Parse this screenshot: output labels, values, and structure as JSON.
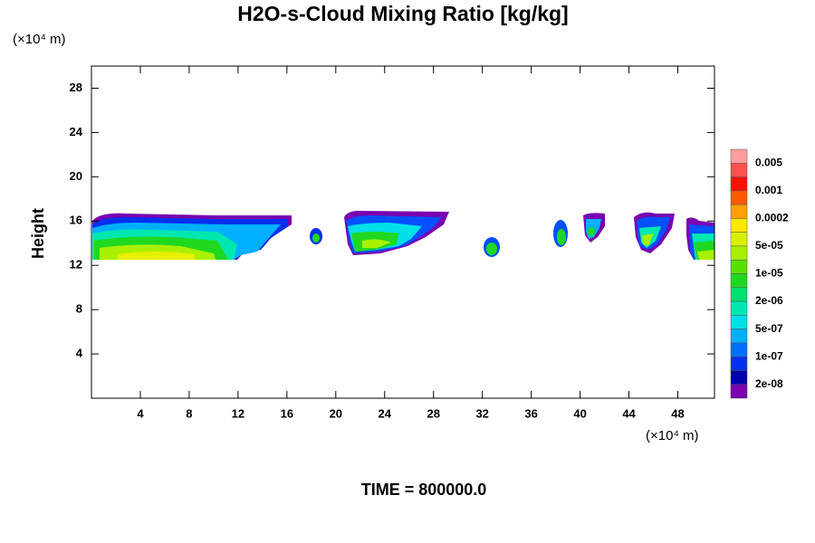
{
  "chart_data": {
    "type": "contour",
    "title": "H2O-s-Cloud Mixing Ratio [kg/kg]",
    "y_unit_label": "(×10⁴ m)",
    "x_unit_label": "(×10⁴ m)",
    "ylabel": "Height",
    "caption": "TIME = 800000.0",
    "xlim": [
      0,
      51
    ],
    "ylim": [
      0,
      30
    ],
    "xticks": [
      4,
      8,
      12,
      16,
      20,
      24,
      28,
      32,
      36,
      40,
      44,
      48
    ],
    "yticks": [
      4,
      8,
      12,
      16,
      20,
      24,
      28
    ],
    "colorbar": {
      "colors": [
        "#ff9c9c",
        "#ff5050",
        "#ff1000",
        "#ff5a00",
        "#ffa000",
        "#ffe800",
        "#d8f000",
        "#a8f000",
        "#58e000",
        "#20d820",
        "#00e070",
        "#00e8b0",
        "#00e0e8",
        "#00b0ff",
        "#0070ff",
        "#0030f0",
        "#0000b0",
        "#7a00b0"
      ],
      "levels": [
        {
          "value": 0.005,
          "label": "0.005"
        },
        {
          "value": 0.001,
          "label": "0.001"
        },
        {
          "value": 0.0002,
          "label": "0.0002"
        },
        {
          "value": 5e-05,
          "label": "5e-05"
        },
        {
          "value": 1e-05,
          "label": "1e-05"
        },
        {
          "value": 2e-06,
          "label": "2e-06"
        },
        {
          "value": 5e-07,
          "label": "5e-07"
        },
        {
          "value": 1e-07,
          "label": "1e-07"
        },
        {
          "value": 2e-08,
          "label": "2e-08"
        }
      ]
    }
  }
}
